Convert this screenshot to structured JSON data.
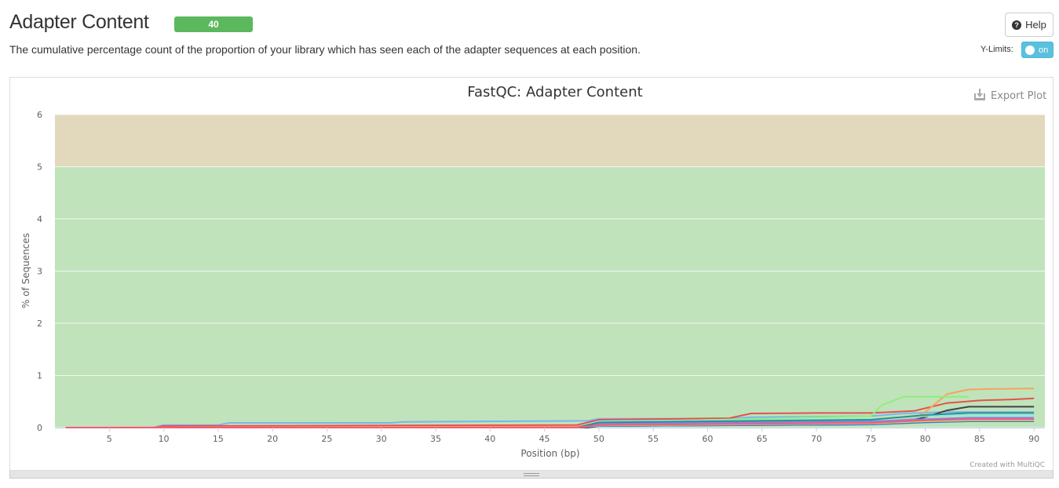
{
  "header": {
    "title": "Adapter Content",
    "badge": "40",
    "description": "The cumulative percentage count of the proportion of your library which has seen each of the adapter sequences at each position.",
    "help_label": "Help",
    "ylimits_label": "Y-Limits:",
    "toggle_label": "on"
  },
  "plot": {
    "export_label": "Export Plot",
    "credit": "Created with MultiQC"
  },
  "colors": {
    "band_pass": "#c0e3bb",
    "band_warn": "#e2d8bb",
    "badge": "#5cb85c",
    "toggle": "#5bc0de"
  },
  "chart_data": {
    "type": "line",
    "title": "FastQC: Adapter Content",
    "xlabel": "Position (bp)",
    "ylabel": "% of Sequences",
    "xlim": [
      0,
      91
    ],
    "ylim": [
      0,
      6
    ],
    "xticks": [
      5,
      10,
      15,
      20,
      25,
      30,
      35,
      40,
      45,
      50,
      55,
      60,
      65,
      70,
      75,
      80,
      85,
      90
    ],
    "yticks": [
      0,
      1,
      2,
      3,
      4,
      5,
      6
    ],
    "grid": true,
    "legend": "none",
    "bands": [
      {
        "from": 0,
        "to": 5,
        "color": "#c0e3bb"
      },
      {
        "from": 5,
        "to": 6,
        "color": "#e2d8bb"
      }
    ],
    "series": [
      {
        "color": "#7cb5ec",
        "x": [
          1,
          9,
          10,
          15,
          16,
          31,
          32,
          49,
          50,
          62,
          64,
          75,
          78,
          82,
          84,
          90
        ],
        "y": [
          0,
          0,
          0.05,
          0.05,
          0.09,
          0.09,
          0.11,
          0.13,
          0.17,
          0.17,
          0.2,
          0.22,
          0.27,
          0.3,
          0.3,
          0.3
        ]
      },
      {
        "color": "#434348",
        "x": [
          1,
          49,
          50,
          75,
          78,
          80,
          82,
          84,
          90
        ],
        "y": [
          0,
          0,
          0.03,
          0.06,
          0.1,
          0.2,
          0.33,
          0.4,
          0.4
        ]
      },
      {
        "color": "#e4524b",
        "x": [
          1,
          9,
          10,
          48,
          50,
          62,
          64,
          70,
          75,
          79,
          82,
          85,
          88,
          90
        ],
        "y": [
          0,
          0,
          0.03,
          0.05,
          0.15,
          0.18,
          0.27,
          0.28,
          0.28,
          0.32,
          0.47,
          0.52,
          0.54,
          0.56
        ]
      },
      {
        "color": "#f7a35c",
        "x": [
          1,
          48,
          49,
          75,
          79,
          80,
          82,
          84,
          86,
          90
        ],
        "y": [
          0,
          0.02,
          0.06,
          0.1,
          0.17,
          0.3,
          0.64,
          0.73,
          0.74,
          0.75
        ]
      },
      {
        "color": "#90ed7d",
        "x": [
          1,
          48,
          50,
          75,
          76,
          78,
          84
        ],
        "y": [
          0,
          0,
          0.1,
          0.22,
          0.43,
          0.59,
          0.59
        ]
      },
      {
        "color": "#2f7ed8",
        "x": [
          1,
          48,
          50,
          75,
          80,
          84,
          90
        ],
        "y": [
          0,
          0,
          0.03,
          0.06,
          0.1,
          0.12,
          0.12
        ]
      },
      {
        "color": "#91e8e1",
        "x": [
          1,
          48,
          50,
          75,
          80,
          84,
          90
        ],
        "y": [
          0,
          0,
          0.12,
          0.16,
          0.22,
          0.24,
          0.24
        ]
      },
      {
        "color": "#ff9655",
        "x": [
          1,
          48,
          50,
          75,
          80,
          84,
          90
        ],
        "y": [
          0,
          0,
          0.06,
          0.1,
          0.15,
          0.18,
          0.18
        ]
      },
      {
        "color": "#e4d354",
        "x": [
          1,
          48,
          50,
          75,
          80,
          84,
          90
        ],
        "y": [
          0,
          0,
          0.04,
          0.08,
          0.12,
          0.14,
          0.14
        ]
      },
      {
        "color": "#8085e9",
        "x": [
          1,
          48,
          50,
          75,
          80,
          84,
          90
        ],
        "y": [
          0,
          0,
          0.08,
          0.12,
          0.16,
          0.19,
          0.19
        ]
      },
      {
        "color": "#2b908f",
        "x": [
          1,
          48,
          50,
          75,
          80,
          84,
          90
        ],
        "y": [
          0,
          0,
          0.1,
          0.15,
          0.24,
          0.28,
          0.28
        ]
      },
      {
        "color": "#f15c80",
        "x": [
          1,
          48,
          50,
          75,
          80,
          84,
          90
        ],
        "y": [
          0,
          0,
          0.05,
          0.09,
          0.14,
          0.16,
          0.16
        ]
      }
    ]
  }
}
